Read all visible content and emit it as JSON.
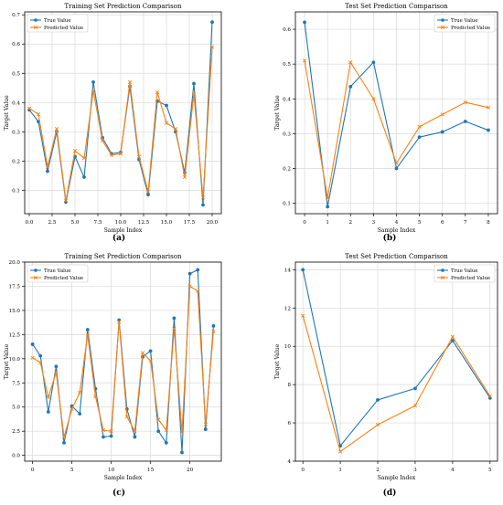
{
  "colors": {
    "true_series": "#1f77b4",
    "predicted_series": "#ff7f0e",
    "grid": "#d9d9d9",
    "axis": "#000000"
  },
  "panel_labels": [
    "(a)",
    "(b)",
    "(c)",
    "(d)"
  ],
  "chart_data": [
    {
      "type": "line",
      "title": "Training Set Prediction Comparison",
      "xlabel": "Sample Index",
      "ylabel": "Target Value",
      "xlim": [
        -0.5,
        21
      ],
      "ylim": [
        0.02,
        0.71
      ],
      "xticks": [
        0,
        2.5,
        5,
        7.5,
        10,
        12.5,
        15,
        17.5,
        20
      ],
      "xtick_labels": [
        "0.0",
        "2.5",
        "5.0",
        "7.5",
        "10.0",
        "12.5",
        "15.0",
        "17.5",
        "20.0"
      ],
      "yticks": [
        0.1,
        0.2,
        0.3,
        0.4,
        0.5,
        0.6,
        0.7
      ],
      "ytick_labels": [
        "0.1",
        "0.2",
        "0.3",
        "0.4",
        "0.5",
        "0.6",
        "0.7"
      ],
      "grid": true,
      "legend_position": "top-left",
      "x": [
        0,
        1,
        2,
        3,
        4,
        5,
        6,
        7,
        8,
        9,
        10,
        11,
        12,
        13,
        14,
        15,
        16,
        17,
        18,
        19,
        20
      ],
      "series": [
        {
          "name": "True Value",
          "marker": "circle",
          "values": [
            0.375,
            0.335,
            0.165,
            0.3,
            0.06,
            0.215,
            0.145,
            0.47,
            0.28,
            0.225,
            0.23,
            0.455,
            0.205,
            0.085,
            0.405,
            0.39,
            0.3,
            0.16,
            0.465,
            0.05,
            0.675
          ]
        },
        {
          "name": "Predicted Value",
          "marker": "x",
          "values": [
            0.38,
            0.36,
            0.18,
            0.31,
            0.065,
            0.235,
            0.21,
            0.44,
            0.27,
            0.22,
            0.225,
            0.47,
            0.215,
            0.095,
            0.435,
            0.33,
            0.31,
            0.145,
            0.43,
            0.075,
            0.59
          ]
        }
      ]
    },
    {
      "type": "line",
      "title": "Test Set Prediction Comparison",
      "xlabel": "Sample Index",
      "ylabel": "Target Value",
      "xlim": [
        -0.4,
        8.4
      ],
      "ylim": [
        0.07,
        0.65
      ],
      "xticks": [
        0,
        1,
        2,
        3,
        4,
        5,
        6,
        7,
        8
      ],
      "xtick_labels": [
        "0",
        "1",
        "2",
        "3",
        "4",
        "5",
        "6",
        "7",
        "8"
      ],
      "yticks": [
        0.1,
        0.2,
        0.3,
        0.4,
        0.5,
        0.6
      ],
      "ytick_labels": [
        "0.1",
        "0.2",
        "0.3",
        "0.4",
        "0.5",
        "0.6"
      ],
      "grid": true,
      "legend_position": "top-right",
      "x": [
        0,
        1,
        2,
        3,
        4,
        5,
        6,
        7,
        8
      ],
      "series": [
        {
          "name": "True Value",
          "marker": "circle",
          "values": [
            0.62,
            0.09,
            0.435,
            0.505,
            0.2,
            0.29,
            0.305,
            0.335,
            0.31
          ]
        },
        {
          "name": "Predicted Value",
          "marker": "x",
          "values": [
            0.51,
            0.115,
            0.505,
            0.4,
            0.215,
            0.32,
            0.355,
            0.39,
            0.375
          ]
        }
      ]
    },
    {
      "type": "line",
      "title": "Training Set Prediction Comparison",
      "xlabel": "Sample Index",
      "ylabel": "Target Value",
      "xlim": [
        -1,
        24
      ],
      "ylim": [
        -0.6,
        20.0
      ],
      "xticks": [
        0,
        5,
        10,
        15,
        20
      ],
      "xtick_labels": [
        "0",
        "5",
        "10",
        "15",
        "20"
      ],
      "yticks": [
        0,
        2.5,
        5,
        7.5,
        10,
        12.5,
        15,
        17.5,
        20
      ],
      "ytick_labels": [
        "0.0",
        "2.5",
        "5.0",
        "7.5",
        "10.0",
        "12.5",
        "15.0",
        "17.5",
        "20.0"
      ],
      "grid": true,
      "legend_position": "top-left",
      "x": [
        0,
        1,
        2,
        3,
        4,
        5,
        6,
        7,
        8,
        9,
        10,
        11,
        12,
        13,
        14,
        15,
        16,
        17,
        18,
        19,
        20,
        21,
        22,
        23
      ],
      "series": [
        {
          "name": "True Value",
          "marker": "circle",
          "values": [
            11.5,
            10.3,
            4.5,
            9.2,
            1.3,
            5.1,
            4.3,
            13.0,
            6.9,
            1.9,
            2.0,
            14.0,
            4.8,
            1.9,
            10.2,
            10.8,
            2.5,
            1.3,
            14.2,
            0.3,
            18.8,
            19.2,
            2.7,
            13.4
          ]
        },
        {
          "name": "Predicted Value",
          "marker": "x",
          "values": [
            10.1,
            9.6,
            6.0,
            8.6,
            1.9,
            4.8,
            6.5,
            12.5,
            6.1,
            2.6,
            2.5,
            13.8,
            4.0,
            2.5,
            10.6,
            9.8,
            3.7,
            2.6,
            13.1,
            2.4,
            17.5,
            17.0,
            3.2,
            12.8
          ]
        }
      ]
    },
    {
      "type": "line",
      "title": "Test Set Prediction Comparison",
      "xlabel": "Sample Index",
      "ylabel": "Target Value",
      "xlim": [
        -0.2,
        5.2
      ],
      "ylim": [
        4.0,
        14.4
      ],
      "xticks": [
        0,
        1,
        2,
        3,
        4,
        5
      ],
      "xtick_labels": [
        "0",
        "1",
        "2",
        "3",
        "4",
        "5"
      ],
      "yticks": [
        4,
        6,
        8,
        10,
        12,
        14
      ],
      "ytick_labels": [
        "4",
        "6",
        "8",
        "10",
        "12",
        "14"
      ],
      "grid": true,
      "legend_position": "top-right",
      "x": [
        0,
        1,
        2,
        3,
        4,
        5
      ],
      "series": [
        {
          "name": "True Value",
          "marker": "circle",
          "values": [
            14.0,
            4.8,
            7.2,
            7.8,
            10.3,
            7.3
          ]
        },
        {
          "name": "Predicted Value",
          "marker": "x",
          "values": [
            11.6,
            4.5,
            5.9,
            6.9,
            10.5,
            7.4
          ]
        }
      ]
    }
  ]
}
